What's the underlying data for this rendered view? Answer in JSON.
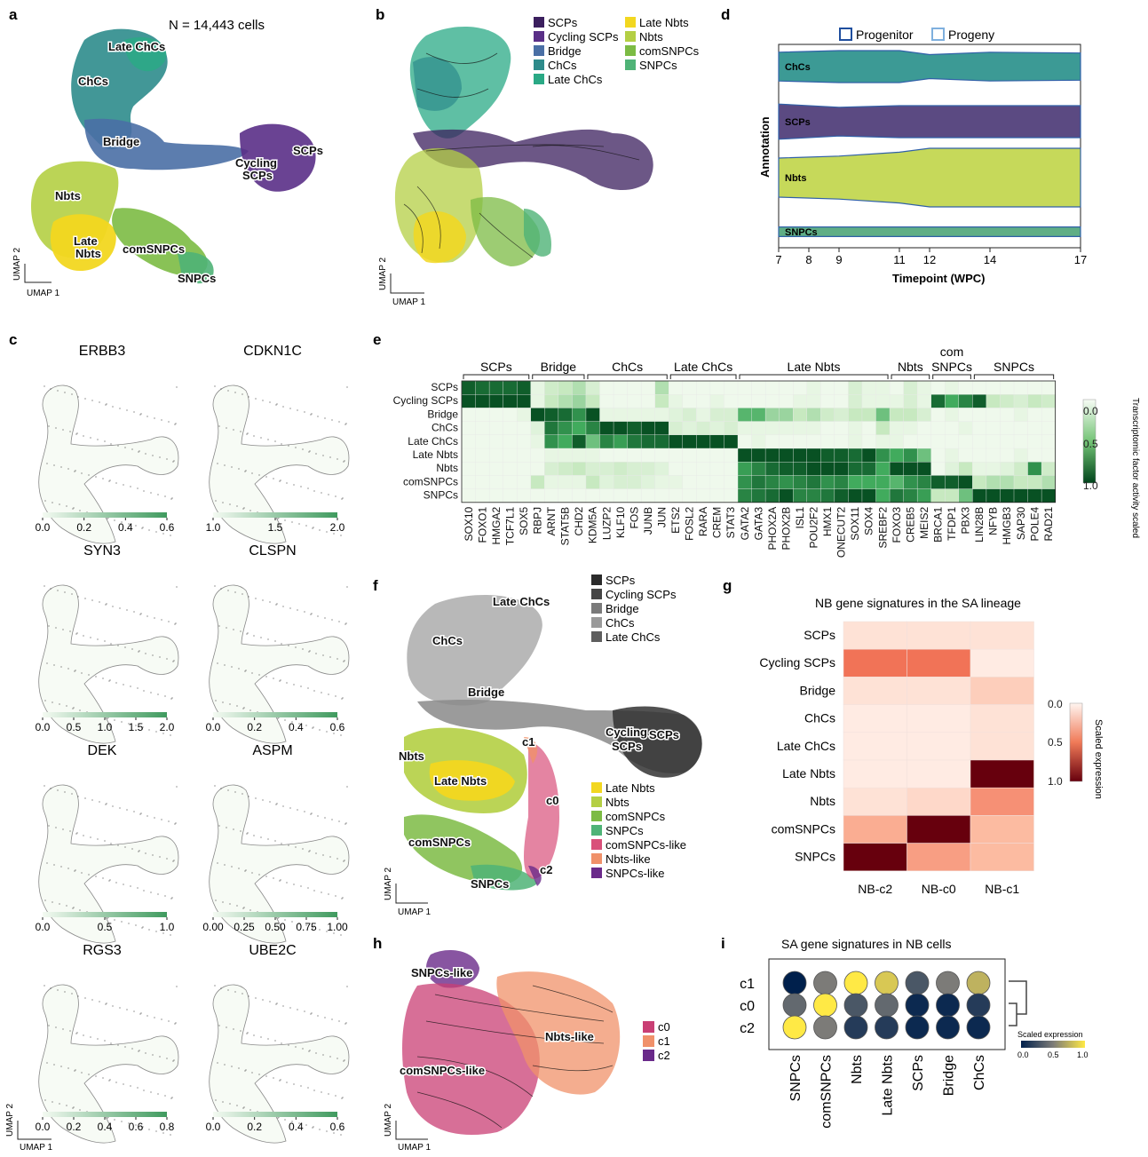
{
  "panel_letters": {
    "a": "a",
    "b": "b",
    "c": "c",
    "d": "d",
    "e": "e",
    "f": "f",
    "g": "g",
    "h": "h",
    "i": "i"
  },
  "umap_axes": {
    "x": "UMAP 1",
    "y": "UMAP 2"
  },
  "panel_a": {
    "title": "N = 14,443 cells",
    "labels": [
      "Late ChCs",
      "ChCs",
      "Bridge",
      "SCPs",
      "Cycling",
      "SCPs",
      "Nbts",
      "Late",
      "Nbts",
      "comSNPCs",
      "SNPCs"
    ]
  },
  "panel_b": {
    "legend": [
      {
        "label": "SCPs",
        "color": "#3b1f5e"
      },
      {
        "label": "Cycling SCPs",
        "color": "#5a2f87"
      },
      {
        "label": "Bridge",
        "color": "#4a6fa5"
      },
      {
        "label": "ChCs",
        "color": "#2e8b8b"
      },
      {
        "label": "Late ChCs",
        "color": "#2aa985"
      },
      {
        "label": "Late Nbts",
        "color": "#f2d720"
      },
      {
        "label": "Nbts",
        "color": "#b4cf44"
      },
      {
        "label": "comSNPCs",
        "color": "#7cbb44"
      },
      {
        "label": "SNPCs",
        "color": "#4fb377"
      }
    ]
  },
  "panel_c": {
    "genes": [
      {
        "name": "ERBB3",
        "ticks": [
          "0.0",
          "0.2",
          "0.4",
          "0.6"
        ]
      },
      {
        "name": "CDKN1C",
        "ticks": [
          "1.0",
          "1.5",
          "2.0"
        ]
      },
      {
        "name": "SYN3",
        "ticks": [
          "0.0",
          "0.5",
          "1.0",
          "1.5",
          "2.0"
        ]
      },
      {
        "name": "CLSPN",
        "ticks": [
          "0.0",
          "0.2",
          "0.4",
          "0.6"
        ]
      },
      {
        "name": "DEK",
        "ticks": [
          "0.0",
          "0.5",
          "1.0"
        ]
      },
      {
        "name": "ASPM",
        "ticks": [
          "0.00",
          "0.25",
          "0.50",
          "0.75",
          "1.00"
        ]
      },
      {
        "name": "RGS3",
        "ticks": [
          "0.0",
          "0.2",
          "0.4",
          "0.6",
          "0.8"
        ]
      },
      {
        "name": "UBE2C",
        "ticks": [
          "0.0",
          "0.2",
          "0.4",
          "0.6"
        ]
      }
    ]
  },
  "chart_data": [
    {
      "panel": "d",
      "type": "area",
      "legend": [
        "Progenitor",
        "Progeny"
      ],
      "ylabel": "Annotation",
      "xlabel": "Timepoint (WPC)",
      "x_ticks": [
        7,
        8,
        9,
        11,
        12,
        14,
        17
      ],
      "series": [
        {
          "name": "ChCs",
          "color": "#3c9a95",
          "x": [
            7,
            9,
            11,
            12,
            14,
            17
          ],
          "thickness": [
            0.9,
            1.0,
            1.0,
            0.75,
            0.9,
            0.85
          ]
        },
        {
          "name": "SCPs",
          "color": "#5b4a82",
          "x": [
            7,
            9,
            11,
            12,
            14,
            17
          ],
          "thickness": [
            1.1,
            0.9,
            1.0,
            1.0,
            1.0,
            1.0
          ]
        },
        {
          "name": "Nbts",
          "color": "#c6d95a",
          "x": [
            7,
            9,
            11,
            12,
            14,
            17
          ],
          "thickness": [
            1.0,
            1.1,
            1.3,
            1.5,
            1.5,
            1.5
          ]
        },
        {
          "name": "SNPCs",
          "color": "#5fae85",
          "x": [
            7,
            9,
            11,
            12,
            14,
            17
          ],
          "thickness": [
            0.6,
            0.6,
            0.6,
            0.6,
            0.6,
            0.6
          ]
        }
      ]
    },
    {
      "panel": "e",
      "type": "heatmap",
      "group_labels": [
        "SCPs",
        "Bridge",
        "ChCs",
        "Late ChCs",
        "Late Nbts",
        "Nbts",
        "com",
        "SNPCs",
        "SNPCs"
      ],
      "rows": [
        "SCPs",
        "Cycling SCPs",
        "Bridge",
        "ChCs",
        "Late ChCs",
        "Late Nbts",
        "Nbts",
        "comSNPCs",
        "SNPCs"
      ],
      "columns": [
        "SOX10",
        "FOXO1",
        "HMGA2",
        "TCF7L1",
        "SOX5",
        "RBPJ",
        "ARNT",
        "STAT5B",
        "CHD2",
        "KDM5A",
        "LUZP2",
        "KLF10",
        "FOS",
        "JUNB",
        "JUN",
        "ETS2",
        "FOSL2",
        "RARA",
        "CREM",
        "STAT3",
        "GATA2",
        "GATA3",
        "PHOX2A",
        "PHOX2B",
        "ISL1",
        "POU2F2",
        "HMX1",
        "ONECUT2",
        "SOX11",
        "SOX4",
        "SREBF2",
        "FOXO3",
        "CREB5",
        "MEIS2",
        "BRCA1",
        "TFDP1",
        "PBX3",
        "LIN28B",
        "NFYB",
        "HMGB3",
        "SAP30",
        "POLE4",
        "RAD21"
      ],
      "values": [
        [
          0.9,
          0.85,
          0.85,
          0.85,
          0.9,
          0.1,
          0.25,
          0.3,
          0.35,
          0.2,
          0.05,
          0.05,
          0.05,
          0.05,
          0.35,
          0.05,
          0.05,
          0.05,
          0.05,
          0.05,
          0.05,
          0.05,
          0.05,
          0.05,
          0.05,
          0.1,
          0.05,
          0.05,
          0.2,
          0.1,
          0.1,
          0.05,
          0.2,
          0.1,
          0.05,
          0.1,
          0.05,
          0.05,
          0.05,
          0.05,
          0.05,
          0.05,
          0.05
        ],
        [
          0.95,
          0.95,
          0.95,
          0.95,
          0.95,
          0.1,
          0.3,
          0.35,
          0.4,
          0.3,
          0.05,
          0.05,
          0.05,
          0.05,
          0.3,
          0.1,
          0.05,
          0.05,
          0.1,
          0.05,
          0.05,
          0.05,
          0.05,
          0.05,
          0.1,
          0.1,
          0.05,
          0.05,
          0.2,
          0.1,
          0.1,
          0.1,
          0.2,
          0.1,
          0.85,
          0.6,
          0.75,
          0.9,
          0.3,
          0.25,
          0.2,
          0.3,
          0.25
        ],
        [
          0.05,
          0.05,
          0.05,
          0.05,
          0.1,
          0.95,
          0.9,
          0.85,
          0.7,
          0.95,
          0.1,
          0.1,
          0.1,
          0.1,
          0.1,
          0.15,
          0.2,
          0.1,
          0.2,
          0.2,
          0.55,
          0.55,
          0.4,
          0.4,
          0.3,
          0.35,
          0.25,
          0.2,
          0.3,
          0.3,
          0.5,
          0.3,
          0.3,
          0.2,
          0.05,
          0.1,
          0.05,
          0.05,
          0.05,
          0.05,
          0.1,
          0.05,
          0.05
        ],
        [
          0.05,
          0.05,
          0.05,
          0.05,
          0.05,
          0.15,
          0.8,
          0.7,
          0.6,
          0.75,
          0.95,
          0.95,
          0.9,
          0.95,
          0.95,
          0.2,
          0.15,
          0.2,
          0.15,
          0.2,
          0.1,
          0.1,
          0.1,
          0.1,
          0.1,
          0.1,
          0.05,
          0.05,
          0.1,
          0.05,
          0.3,
          0.1,
          0.1,
          0.05,
          0.05,
          0.05,
          0.1,
          0.05,
          0.05,
          0.05,
          0.05,
          0.05,
          0.05
        ],
        [
          0.05,
          0.05,
          0.05,
          0.05,
          0.05,
          0.1,
          0.7,
          0.6,
          0.9,
          0.5,
          0.75,
          0.65,
          0.8,
          0.85,
          0.85,
          0.95,
          0.95,
          0.95,
          0.95,
          0.95,
          0.05,
          0.1,
          0.05,
          0.05,
          0.05,
          0.05,
          0.05,
          0.05,
          0.1,
          0.05,
          0.1,
          0.1,
          0.05,
          0.05,
          0.05,
          0.05,
          0.05,
          0.05,
          0.05,
          0.05,
          0.05,
          0.05,
          0.05
        ],
        [
          0.05,
          0.05,
          0.05,
          0.05,
          0.05,
          0.05,
          0.1,
          0.1,
          0.1,
          0.1,
          0.05,
          0.05,
          0.05,
          0.05,
          0.05,
          0.05,
          0.05,
          0.05,
          0.05,
          0.05,
          0.95,
          0.95,
          0.95,
          0.95,
          0.95,
          0.95,
          0.9,
          0.9,
          0.85,
          0.95,
          0.7,
          0.6,
          0.7,
          0.5,
          0.05,
          0.1,
          0.05,
          0.05,
          0.05,
          0.05,
          0.1,
          0.05,
          0.05
        ],
        [
          0.05,
          0.05,
          0.05,
          0.05,
          0.05,
          0.05,
          0.2,
          0.25,
          0.3,
          0.2,
          0.2,
          0.25,
          0.2,
          0.2,
          0.15,
          0.05,
          0.05,
          0.05,
          0.05,
          0.05,
          0.65,
          0.75,
          0.85,
          0.9,
          0.9,
          0.95,
          0.95,
          0.95,
          0.85,
          0.85,
          0.6,
          0.95,
          0.95,
          0.95,
          0.05,
          0.15,
          0.3,
          0.1,
          0.1,
          0.15,
          0.25,
          0.7,
          0.25
        ],
        [
          0.05,
          0.05,
          0.05,
          0.05,
          0.05,
          0.3,
          0.1,
          0.1,
          0.1,
          0.3,
          0.15,
          0.2,
          0.2,
          0.15,
          0.1,
          0.1,
          0.05,
          0.05,
          0.05,
          0.05,
          0.7,
          0.8,
          0.75,
          0.7,
          0.75,
          0.8,
          0.7,
          0.75,
          0.6,
          0.6,
          0.6,
          0.55,
          0.7,
          0.75,
          0.9,
          0.9,
          0.95,
          0.3,
          0.35,
          0.35,
          0.3,
          0.3,
          0.35
        ],
        [
          0.05,
          0.05,
          0.05,
          0.05,
          0.05,
          0.05,
          0.05,
          0.05,
          0.05,
          0.05,
          0.05,
          0.05,
          0.05,
          0.05,
          0.05,
          0.05,
          0.05,
          0.05,
          0.05,
          0.05,
          0.75,
          0.8,
          0.85,
          0.95,
          0.75,
          0.75,
          0.8,
          0.9,
          0.95,
          0.95,
          0.6,
          0.8,
          0.75,
          0.65,
          0.3,
          0.3,
          0.5,
          0.95,
          0.95,
          0.95,
          0.95,
          0.95,
          0.95
        ]
      ],
      "colorbar_label": "Transcriptomic factor activity scaled",
      "colorbar_ticks": [
        "0.0",
        "0.5",
        "1.0"
      ],
      "vmin": 0,
      "vmax": 1
    },
    {
      "panel": "g",
      "type": "heatmap",
      "title": "NB gene signatures in the SA lineage",
      "rows": [
        "SCPs",
        "Cycling SCPs",
        "Bridge",
        "ChCs",
        "Late ChCs",
        "Late Nbts",
        "Nbts",
        "comSNPCs",
        "SNPCs"
      ],
      "columns": [
        "NB-c2",
        "NB-c0",
        "NB-c1"
      ],
      "values": [
        [
          0.1,
          0.1,
          0.1
        ],
        [
          0.55,
          0.55,
          0.05
        ],
        [
          0.1,
          0.1,
          0.2
        ],
        [
          0.05,
          0.05,
          0.1
        ],
        [
          0.05,
          0.05,
          0.1
        ],
        [
          0.05,
          0.05,
          1.0
        ],
        [
          0.1,
          0.15,
          0.45
        ],
        [
          0.35,
          1.0,
          0.3
        ],
        [
          1.0,
          0.4,
          0.3
        ]
      ],
      "colorbar_label": "Scaled expression",
      "colorbar_ticks": [
        "0.0",
        "0.5",
        "1.0"
      ],
      "vmin": 0,
      "vmax": 1
    },
    {
      "panel": "i",
      "type": "scatter",
      "title": "SA gene signatures in NB cells",
      "rows": [
        "c1",
        "c0",
        "c2"
      ],
      "columns": [
        "SNPCs",
        "comSNPCs",
        "Nbts",
        "Late Nbts",
        "SCPs",
        "Bridge",
        "ChCs"
      ],
      "values": [
        [
          0.0,
          0.5,
          1.0,
          0.85,
          0.3,
          0.5,
          0.75
        ],
        [
          0.4,
          1.0,
          0.3,
          0.4,
          0.05,
          0.05,
          0.15
        ],
        [
          1.0,
          0.5,
          0.15,
          0.15,
          0.05,
          0.05,
          0.05
        ]
      ],
      "colorbar_label": "Scaled expression",
      "colorbar_ticks": [
        "0.0",
        "0.5",
        "1.0"
      ]
    }
  ],
  "panel_f": {
    "labels": [
      "Late ChCs",
      "ChCs",
      "Bridge",
      "SCPs",
      "Cycling",
      "SCPs",
      "Nbts",
      "Late Nbts",
      "comSNPCs",
      "SNPCs",
      "c1",
      "c0",
      "c2"
    ],
    "legend_top": [
      {
        "label": "SCPs",
        "color": "#2b2b2b"
      },
      {
        "label": "Cycling SCPs",
        "color": "#454545"
      },
      {
        "label": "Bridge",
        "color": "#7a7a7a"
      },
      {
        "label": "ChCs",
        "color": "#9a9a9a"
      },
      {
        "label": "Late ChCs",
        "color": "#5e5e5e"
      }
    ],
    "legend_bottom": [
      {
        "label": "Late Nbts",
        "color": "#f2d720"
      },
      {
        "label": "Nbts",
        "color": "#b4cf44"
      },
      {
        "label": "comSNPCs",
        "color": "#7cbb44"
      },
      {
        "label": "SNPCs",
        "color": "#4fb377"
      },
      {
        "label": "comSNPCs-like",
        "color": "#d9507a"
      },
      {
        "label": "Nbts-like",
        "color": "#f0916a"
      },
      {
        "label": "SNPCs-like",
        "color": "#6a2a8a"
      }
    ]
  },
  "panel_h": {
    "labels": [
      "SNPCs-like",
      "Nbts-like",
      "comSNPCs-like"
    ],
    "legend": [
      {
        "label": "c0",
        "color": "#c93f74"
      },
      {
        "label": "c1",
        "color": "#f0916a"
      },
      {
        "label": "c2",
        "color": "#6a2a8a"
      }
    ]
  }
}
